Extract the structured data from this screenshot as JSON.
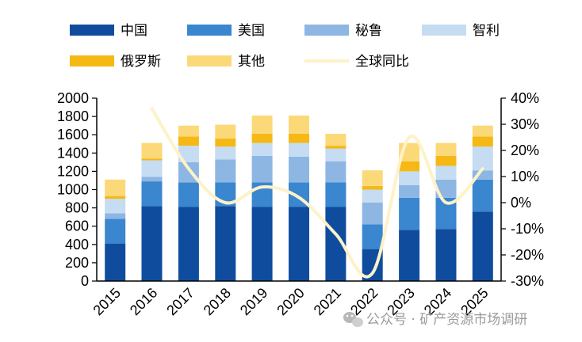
{
  "watermark": {
    "text": "公众号 · 矿产资源市场调研"
  },
  "colors": {
    "中国": "#0f4c9e",
    "美国": "#3a86cf",
    "秘鲁": "#8db6e3",
    "智利": "#c5dcf2",
    "俄罗斯": "#f5b815",
    "其他": "#fcd978",
    "全球同比": "#fdf2c8"
  },
  "chart_data": {
    "type": "bar",
    "stacked": true,
    "categories": [
      "2015",
      "2016",
      "2017",
      "2018",
      "2019",
      "2020",
      "2021",
      "2022",
      "2023",
      "2024",
      "2025"
    ],
    "series": [
      {
        "name": "中国",
        "values": [
          410,
          820,
          810,
          820,
          810,
          810,
          810,
          350,
          560,
          570,
          760
        ]
      },
      {
        "name": "美国",
        "values": [
          270,
          270,
          270,
          260,
          270,
          270,
          270,
          270,
          350,
          340,
          350
        ]
      },
      {
        "name": "秘鲁",
        "values": [
          60,
          50,
          220,
          250,
          290,
          280,
          230,
          240,
          140,
          200,
          100
        ]
      },
      {
        "name": "智利",
        "values": [
          160,
          180,
          180,
          140,
          140,
          150,
          140,
          140,
          150,
          150,
          260
        ]
      },
      {
        "name": "俄罗斯",
        "values": [
          30,
          20,
          100,
          90,
          100,
          100,
          30,
          40,
          110,
          110,
          110
        ]
      },
      {
        "name": "其他",
        "values": [
          180,
          170,
          120,
          150,
          200,
          200,
          130,
          170,
          200,
          140,
          120
        ]
      }
    ],
    "line_series": {
      "name": "全球同比",
      "axis": "right",
      "unit": "%",
      "x": [
        "2016",
        "2017",
        "2018",
        "2019",
        "2020",
        "2021",
        "2022",
        "2023",
        "2024",
        "2025"
      ],
      "values": [
        36,
        13,
        0,
        6,
        2,
        -12,
        -27,
        25,
        0,
        13
      ]
    },
    "y_left": {
      "min": 0,
      "max": 2000,
      "ticks": [
        0,
        200,
        400,
        600,
        800,
        1000,
        1200,
        1400,
        1600,
        1800,
        2000
      ]
    },
    "y_right": {
      "min": -30,
      "max": 40,
      "ticks": [
        "-30%",
        "-20%",
        "-10%",
        "0%",
        "10%",
        "20%",
        "30%",
        "40%"
      ]
    },
    "legend": {
      "placement": "top",
      "rows": [
        [
          "中国",
          "美国",
          "秘鲁",
          "智利"
        ],
        [
          "俄罗斯",
          "其他",
          "全球同比"
        ]
      ]
    }
  }
}
